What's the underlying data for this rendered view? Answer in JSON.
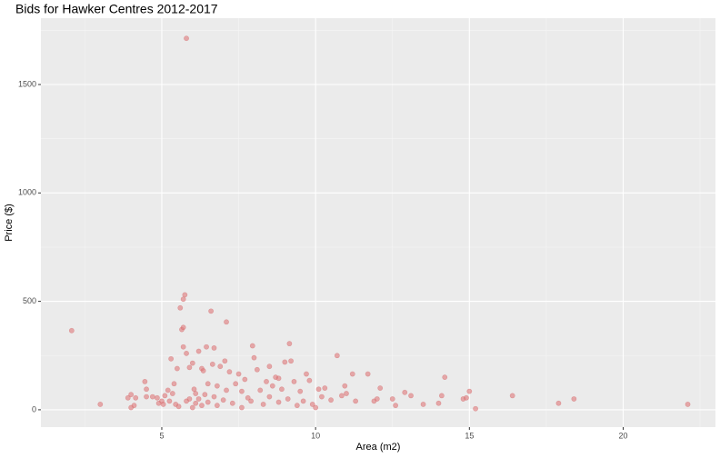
{
  "chart_data": {
    "type": "scatter",
    "title": "Bids for Hawker Centres 2012-2017",
    "x_label": "Area (m2)",
    "y_label": "Price ($)",
    "xlim": [
      1.07,
      23.0
    ],
    "ylim": [
      -80,
      1806
    ],
    "xticks": [
      5,
      10,
      15,
      20
    ],
    "yticks": [
      0,
      500,
      1000,
      1500
    ],
    "grid": true,
    "color": "#e0787a",
    "x": [
      2.07,
      3.0,
      3.9,
      4.0,
      4.1,
      4.0,
      4.15,
      4.45,
      4.5,
      4.5,
      4.7,
      4.85,
      4.9,
      5.0,
      5.05,
      5.1,
      5.2,
      5.25,
      5.3,
      5.35,
      5.4,
      5.45,
      5.5,
      5.55,
      5.6,
      5.65,
      5.7,
      5.7,
      5.75,
      5.7,
      5.8,
      5.8,
      5.8,
      5.9,
      5.9,
      6.0,
      6.0,
      6.05,
      6.1,
      6.1,
      6.2,
      6.2,
      6.3,
      6.3,
      6.35,
      6.4,
      6.45,
      6.5,
      6.5,
      6.6,
      6.65,
      6.7,
      6.7,
      6.8,
      6.8,
      6.9,
      7.0,
      7.05,
      7.1,
      7.1,
      7.2,
      7.3,
      7.4,
      7.5,
      7.6,
      7.6,
      7.7,
      7.8,
      7.9,
      7.95,
      8.0,
      8.1,
      8.2,
      8.3,
      8.4,
      8.5,
      8.5,
      8.6,
      8.7,
      8.8,
      8.8,
      8.9,
      9.0,
      9.1,
      9.15,
      9.2,
      9.3,
      9.4,
      9.5,
      9.6,
      9.7,
      9.8,
      9.9,
      10.0,
      10.1,
      10.2,
      10.3,
      10.5,
      10.7,
      10.85,
      10.95,
      11.0,
      11.2,
      11.3,
      11.7,
      11.9,
      12.0,
      12.1,
      12.5,
      12.6,
      12.9,
      13.1,
      13.5,
      14.0,
      14.1,
      14.2,
      14.8,
      14.9,
      15.0,
      15.2,
      16.4,
      17.9,
      18.4,
      22.1
    ],
    "values": [
      365,
      25,
      55,
      70,
      20,
      10,
      55,
      130,
      95,
      60,
      60,
      55,
      30,
      40,
      25,
      65,
      90,
      40,
      235,
      75,
      120,
      25,
      190,
      15,
      470,
      370,
      380,
      510,
      530,
      290,
      260,
      40,
      1713,
      50,
      195,
      10,
      215,
      95,
      30,
      75,
      270,
      50,
      190,
      20,
      180,
      70,
      290,
      120,
      35,
      455,
      210,
      285,
      60,
      110,
      20,
      200,
      45,
      225,
      405,
      90,
      175,
      30,
      120,
      165,
      85,
      10,
      140,
      55,
      40,
      295,
      240,
      185,
      90,
      25,
      130,
      200,
      60,
      110,
      150,
      35,
      145,
      95,
      220,
      50,
      305,
      225,
      130,
      20,
      85,
      40,
      165,
      135,
      25,
      10,
      95,
      60,
      100,
      45,
      250,
      65,
      110,
      75,
      165,
      40,
      165,
      40,
      50,
      100,
      50,
      20,
      80,
      65,
      25,
      30,
      65,
      150,
      50,
      55,
      85,
      5,
      65,
      30,
      50,
      25
    ]
  }
}
